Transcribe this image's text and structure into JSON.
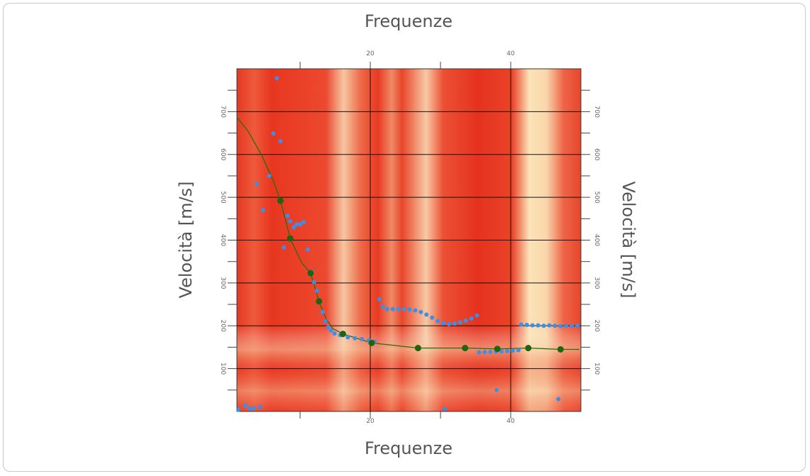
{
  "chart_data": {
    "type": "scatter",
    "title": "Frequenze",
    "xlabel": "Frequenze",
    "ylabel": "Velocità [m/s]",
    "xlim": [
      1,
      50
    ],
    "ylim": [
      0,
      800
    ],
    "xticks": [
      20,
      40
    ],
    "xminorticks": [
      10,
      30
    ],
    "yticks": [
      100,
      200,
      300,
      400,
      500,
      600,
      700
    ],
    "yminorticks": [
      50,
      150,
      250,
      350,
      450,
      550,
      650,
      750
    ],
    "grid": true,
    "series": [
      {
        "type": "scatter",
        "color": "#3b8fe8",
        "x": [
          1.2,
          2.2,
          2.8,
          3.4,
          4.3,
          3.8,
          4.7,
          5.6,
          6.2,
          6.7,
          7.2,
          7.7,
          8.2,
          8.6,
          9.1,
          9.5,
          10,
          10.5,
          11.1,
          11.7,
          12.0,
          12.4,
          12.8,
          13.2,
          13.6,
          14.0,
          14.4,
          14.9,
          15.7,
          16.8,
          17.8,
          18.8,
          19.8,
          20.6,
          21.3,
          21.8,
          22.4,
          23.2,
          24.0,
          24.8,
          25.6,
          26.4,
          27.2,
          28.0,
          28.8,
          29.6,
          30.4,
          31.2,
          32.0,
          32.8,
          33.6,
          34.4,
          35.2,
          30.6,
          35.5,
          36.3,
          37.1,
          37.9,
          38.7,
          39.5,
          40.3,
          41.1,
          38.0,
          41.5,
          42.3,
          43.1,
          43.9,
          44.7,
          45.5,
          46.3,
          47.1,
          47.9,
          48.7,
          49.5,
          46.8
        ],
        "y": [
          4,
          14,
          7,
          7,
          11,
          531,
          470,
          550,
          649,
          778,
          631,
          383,
          457,
          444,
          430,
          437,
          437,
          442,
          378,
          326,
          302,
          282,
          254,
          232,
          211,
          197,
          189,
          182,
          178,
          173,
          171,
          169,
          166,
          163,
          262,
          245,
          239,
          239,
          239,
          239,
          238,
          236,
          232,
          226,
          219,
          211,
          206,
          204,
          205,
          208,
          212,
          217,
          224,
          6,
          138,
          139,
          139,
          140,
          140,
          141,
          142,
          143,
          50,
          203,
          202,
          201,
          201,
          200,
          201,
          200,
          199,
          200,
          200,
          200,
          29
        ]
      },
      {
        "type": "line",
        "color": "#2d6a12",
        "x": [
          1,
          2.6,
          4.6,
          6.2,
          7.2,
          8.6,
          10.2,
          11.5,
          12.7,
          13.7,
          14.7,
          16.1,
          20.2,
          26.8,
          33.5,
          38.1,
          42.5,
          47.1,
          49.8
        ],
        "y": [
          687,
          654,
          596,
          538,
          492,
          404,
          348,
          323,
          257,
          216,
          193,
          181,
          160,
          148,
          148,
          146,
          148,
          145,
          145
        ]
      },
      {
        "type": "scatter",
        "color": "#1f6410",
        "x": [
          7.2,
          8.6,
          11.5,
          12.7,
          16.1,
          20.2,
          26.8,
          33.5,
          38.1,
          42.5,
          47.1
        ],
        "y": [
          492,
          404,
          323,
          257,
          181,
          160,
          148,
          148,
          146,
          148,
          145
        ]
      }
    ]
  }
}
